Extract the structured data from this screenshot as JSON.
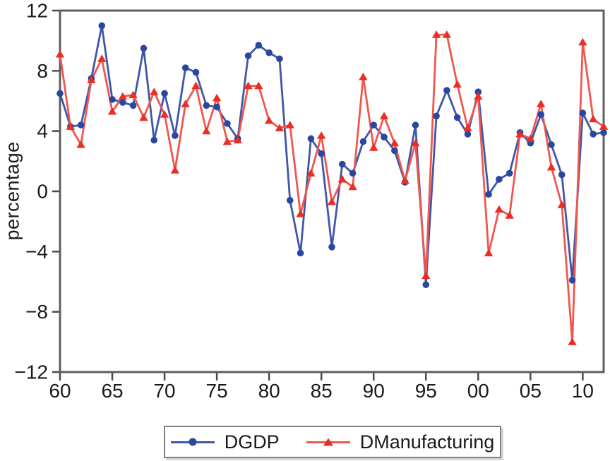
{
  "figure": {
    "ylabel": "percentage"
  },
  "chart_data": {
    "type": "line",
    "title": "",
    "xlabel": "",
    "ylabel": "percentage",
    "xlim": [
      1960,
      2012
    ],
    "ylim": [
      -12,
      12
    ],
    "grid": false,
    "legend_position": "bottom",
    "y_ticks": [
      12,
      8,
      4,
      0,
      -4,
      -8,
      -12
    ],
    "y_tick_labels": [
      "12",
      "8",
      "4",
      "0",
      "−4",
      "−8",
      "−12"
    ],
    "x_ticks": [
      1960,
      1965,
      1970,
      1975,
      1980,
      1985,
      1990,
      1995,
      2000,
      2005,
      2010
    ],
    "x_tick_labels": [
      "60",
      "65",
      "70",
      "75",
      "80",
      "85",
      "90",
      "95",
      "00",
      "05",
      "10"
    ],
    "x": [
      1960,
      1961,
      1962,
      1963,
      1964,
      1965,
      1966,
      1967,
      1968,
      1969,
      1970,
      1971,
      1972,
      1973,
      1974,
      1975,
      1976,
      1977,
      1978,
      1979,
      1980,
      1981,
      1982,
      1983,
      1984,
      1985,
      1986,
      1987,
      1988,
      1989,
      1990,
      1991,
      1992,
      1993,
      1994,
      1995,
      1996,
      1997,
      1998,
      1999,
      2000,
      2001,
      2002,
      2003,
      2004,
      2005,
      2006,
      2007,
      2008,
      2009,
      2010,
      2011,
      2012
    ],
    "series": [
      {
        "name": "DGDP",
        "marker": "circle",
        "color": "#2a47a0",
        "line_color": "#4056a8",
        "values": [
          6.5,
          4.3,
          4.4,
          7.5,
          11.0,
          6.1,
          5.9,
          5.7,
          9.5,
          3.4,
          6.5,
          3.7,
          8.2,
          7.9,
          5.7,
          5.6,
          4.5,
          3.5,
          9.0,
          9.7,
          9.2,
          8.8,
          -0.6,
          -4.1,
          3.5,
          2.5,
          -3.7,
          1.8,
          1.2,
          3.3,
          4.4,
          3.6,
          2.7,
          0.6,
          4.4,
          -6.2,
          5.0,
          6.7,
          4.9,
          3.8,
          6.6,
          -0.2,
          0.8,
          1.2,
          3.9,
          3.2,
          5.1,
          3.1,
          1.1,
          -5.9,
          5.2,
          3.8,
          3.9
        ]
      },
      {
        "name": "DManufacturing",
        "marker": "triangle",
        "color": "#ea2e24",
        "line_color": "#f1564e",
        "values": [
          9.1,
          4.3,
          3.1,
          7.4,
          8.8,
          5.3,
          6.3,
          6.4,
          4.9,
          6.6,
          5.1,
          1.4,
          5.8,
          7.0,
          4.0,
          6.2,
          3.3,
          3.4,
          7.0,
          7.0,
          4.7,
          4.2,
          4.4,
          -1.5,
          1.2,
          3.7,
          -0.7,
          0.8,
          0.3,
          7.6,
          2.9,
          5.0,
          3.2,
          0.7,
          3.2,
          -5.6,
          10.4,
          10.4,
          7.1,
          4.2,
          6.3,
          -4.1,
          -1.2,
          -1.6,
          3.8,
          3.5,
          5.8,
          1.6,
          -0.9,
          -10.0,
          9.9,
          4.8,
          4.3
        ]
      }
    ]
  },
  "legend": {
    "items": [
      {
        "label": "DGDP"
      },
      {
        "label": "DManufacturing"
      }
    ]
  }
}
